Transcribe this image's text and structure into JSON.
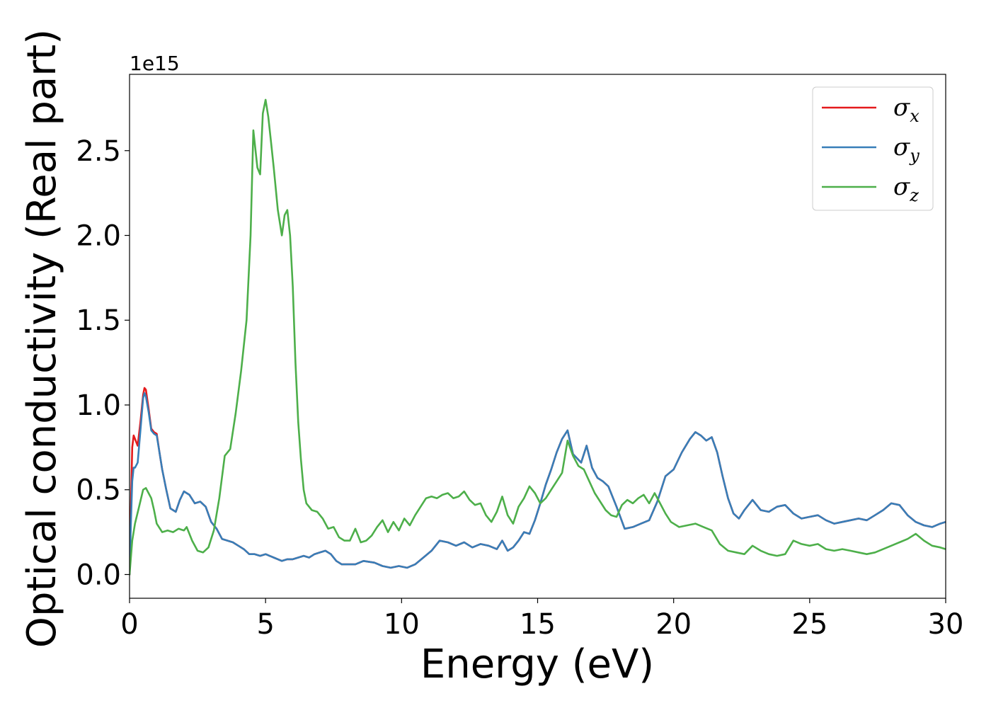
{
  "chart_data": {
    "type": "line",
    "xlabel": "Energy (eV)",
    "ylabel": "Optical conductivity (Real part)",
    "offset_text": "1e15",
    "xlim": [
      0,
      30
    ],
    "ylim": [
      -0.14,
      2.95
    ],
    "xticks": [
      0,
      5,
      10,
      15,
      20,
      25,
      30
    ],
    "xtick_labels": [
      "0",
      "5",
      "10",
      "15",
      "20",
      "25",
      "30"
    ],
    "yticks": [
      0.0,
      0.5,
      1.0,
      1.5,
      2.0,
      2.5
    ],
    "ytick_labels": [
      "0.0",
      "0.5",
      "1.0",
      "1.5",
      "2.0",
      "2.5"
    ],
    "grid": false,
    "legend_position": "upper right",
    "series": [
      {
        "name": "σx",
        "symbol": "σ",
        "subscript": "x",
        "color": "#e41a1c",
        "x": [
          0,
          0.05,
          0.1,
          0.15,
          0.2,
          0.3,
          0.4,
          0.5,
          0.55,
          0.6,
          0.7,
          0.8,
          0.9,
          1.0,
          1.1,
          1.2,
          1.35,
          1.5,
          1.7,
          1.85,
          2.0,
          2.2,
          2.4,
          2.6,
          2.8,
          3.0,
          3.2,
          3.4,
          3.6,
          3.8,
          4.0,
          4.2,
          4.4,
          4.6,
          4.8,
          5.0,
          5.3,
          5.6,
          5.8,
          6.0,
          6.2,
          6.4,
          6.6,
          6.8,
          7.0,
          7.2,
          7.4,
          7.6,
          7.8,
          8.0,
          8.3,
          8.6,
          9.0,
          9.3,
          9.6,
          9.9,
          10.2,
          10.5,
          10.8,
          11.1,
          11.4,
          11.7,
          12.0,
          12.3,
          12.6,
          12.9,
          13.2,
          13.5,
          13.7,
          13.9,
          14.1,
          14.3,
          14.5,
          14.7,
          14.9,
          15.1,
          15.3,
          15.5,
          15.7,
          15.9,
          16.1,
          16.3,
          16.6,
          16.8,
          17.0,
          17.2,
          17.4,
          17.6,
          17.9,
          18.2,
          18.5,
          18.8,
          19.1,
          19.4,
          19.7,
          20.0,
          20.3,
          20.6,
          20.8,
          21.0,
          21.2,
          21.4,
          21.6,
          21.8,
          22.0,
          22.2,
          22.4,
          22.6,
          22.9,
          23.2,
          23.5,
          23.8,
          24.1,
          24.4,
          24.7,
          25.0,
          25.3,
          25.6,
          25.9,
          26.2,
          26.5,
          26.8,
          27.1,
          27.4,
          27.7,
          28.0,
          28.3,
          28.6,
          28.9,
          29.2,
          29.5,
          29.8,
          30.0
        ],
        "y": [
          0.0,
          0.4,
          0.75,
          0.82,
          0.8,
          0.76,
          0.9,
          1.06,
          1.1,
          1.09,
          0.98,
          0.86,
          0.84,
          0.83,
          0.72,
          0.62,
          0.5,
          0.39,
          0.37,
          0.44,
          0.49,
          0.47,
          0.42,
          0.43,
          0.4,
          0.31,
          0.27,
          0.21,
          0.2,
          0.19,
          0.17,
          0.15,
          0.12,
          0.12,
          0.11,
          0.12,
          0.1,
          0.08,
          0.09,
          0.09,
          0.1,
          0.11,
          0.1,
          0.12,
          0.13,
          0.14,
          0.12,
          0.08,
          0.06,
          0.06,
          0.06,
          0.08,
          0.07,
          0.05,
          0.04,
          0.05,
          0.04,
          0.06,
          0.1,
          0.14,
          0.2,
          0.19,
          0.17,
          0.19,
          0.16,
          0.18,
          0.17,
          0.15,
          0.2,
          0.14,
          0.16,
          0.2,
          0.25,
          0.24,
          0.32,
          0.42,
          0.53,
          0.62,
          0.72,
          0.8,
          0.85,
          0.71,
          0.66,
          0.76,
          0.63,
          0.57,
          0.55,
          0.52,
          0.4,
          0.27,
          0.28,
          0.3,
          0.32,
          0.43,
          0.58,
          0.62,
          0.72,
          0.8,
          0.84,
          0.82,
          0.79,
          0.81,
          0.72,
          0.58,
          0.45,
          0.36,
          0.33,
          0.38,
          0.44,
          0.38,
          0.37,
          0.4,
          0.41,
          0.36,
          0.33,
          0.34,
          0.35,
          0.32,
          0.3,
          0.31,
          0.32,
          0.33,
          0.32,
          0.35,
          0.38,
          0.42,
          0.41,
          0.35,
          0.31,
          0.29,
          0.28,
          0.3,
          0.31
        ]
      },
      {
        "name": "σy",
        "symbol": "σ",
        "subscript": "y",
        "color": "#377eb8",
        "x": [
          0,
          0.05,
          0.1,
          0.15,
          0.2,
          0.3,
          0.4,
          0.5,
          0.55,
          0.6,
          0.7,
          0.8,
          0.9,
          1.0,
          1.1,
          1.2,
          1.35,
          1.5,
          1.7,
          1.85,
          2.0,
          2.2,
          2.4,
          2.6,
          2.8,
          3.0,
          3.2,
          3.4,
          3.6,
          3.8,
          4.0,
          4.2,
          4.4,
          4.6,
          4.8,
          5.0,
          5.3,
          5.6,
          5.8,
          6.0,
          6.2,
          6.4,
          6.6,
          6.8,
          7.0,
          7.2,
          7.4,
          7.6,
          7.8,
          8.0,
          8.3,
          8.6,
          9.0,
          9.3,
          9.6,
          9.9,
          10.2,
          10.5,
          10.8,
          11.1,
          11.4,
          11.7,
          12.0,
          12.3,
          12.6,
          12.9,
          13.2,
          13.5,
          13.7,
          13.9,
          14.1,
          14.3,
          14.5,
          14.7,
          14.9,
          15.1,
          15.3,
          15.5,
          15.7,
          15.9,
          16.1,
          16.3,
          16.6,
          16.8,
          17.0,
          17.2,
          17.4,
          17.6,
          17.9,
          18.2,
          18.5,
          18.8,
          19.1,
          19.4,
          19.7,
          20.0,
          20.3,
          20.6,
          20.8,
          21.0,
          21.2,
          21.4,
          21.6,
          21.8,
          22.0,
          22.2,
          22.4,
          22.6,
          22.9,
          23.2,
          23.5,
          23.8,
          24.1,
          24.4,
          24.7,
          25.0,
          25.3,
          25.6,
          25.9,
          26.2,
          26.5,
          26.8,
          27.1,
          27.4,
          27.7,
          28.0,
          28.3,
          28.6,
          28.9,
          29.2,
          29.5,
          29.8,
          30.0
        ],
        "y": [
          0.0,
          0.3,
          0.55,
          0.63,
          0.63,
          0.66,
          0.85,
          1.04,
          1.07,
          1.05,
          0.96,
          0.85,
          0.83,
          0.82,
          0.72,
          0.62,
          0.5,
          0.39,
          0.37,
          0.44,
          0.49,
          0.47,
          0.42,
          0.43,
          0.4,
          0.31,
          0.27,
          0.21,
          0.2,
          0.19,
          0.17,
          0.15,
          0.12,
          0.12,
          0.11,
          0.12,
          0.1,
          0.08,
          0.09,
          0.09,
          0.1,
          0.11,
          0.1,
          0.12,
          0.13,
          0.14,
          0.12,
          0.08,
          0.06,
          0.06,
          0.06,
          0.08,
          0.07,
          0.05,
          0.04,
          0.05,
          0.04,
          0.06,
          0.1,
          0.14,
          0.2,
          0.19,
          0.17,
          0.19,
          0.16,
          0.18,
          0.17,
          0.15,
          0.2,
          0.14,
          0.16,
          0.2,
          0.25,
          0.24,
          0.32,
          0.42,
          0.53,
          0.62,
          0.72,
          0.8,
          0.85,
          0.71,
          0.66,
          0.76,
          0.63,
          0.57,
          0.55,
          0.52,
          0.4,
          0.27,
          0.28,
          0.3,
          0.32,
          0.43,
          0.58,
          0.62,
          0.72,
          0.8,
          0.84,
          0.82,
          0.79,
          0.81,
          0.72,
          0.58,
          0.45,
          0.36,
          0.33,
          0.38,
          0.44,
          0.38,
          0.37,
          0.4,
          0.41,
          0.36,
          0.33,
          0.34,
          0.35,
          0.32,
          0.3,
          0.31,
          0.32,
          0.33,
          0.32,
          0.35,
          0.38,
          0.42,
          0.41,
          0.35,
          0.31,
          0.29,
          0.28,
          0.3,
          0.31
        ]
      },
      {
        "name": "σz",
        "symbol": "σ",
        "subscript": "z",
        "color": "#4daf4a",
        "x": [
          0,
          0.1,
          0.2,
          0.35,
          0.5,
          0.6,
          0.7,
          0.8,
          0.9,
          1.0,
          1.2,
          1.4,
          1.6,
          1.8,
          2.0,
          2.1,
          2.3,
          2.5,
          2.7,
          2.9,
          3.1,
          3.3,
          3.5,
          3.7,
          3.9,
          4.1,
          4.3,
          4.45,
          4.55,
          4.7,
          4.8,
          4.9,
          5.0,
          5.1,
          5.2,
          5.3,
          5.45,
          5.6,
          5.7,
          5.8,
          5.9,
          6.0,
          6.1,
          6.2,
          6.3,
          6.4,
          6.5,
          6.7,
          6.9,
          7.1,
          7.3,
          7.5,
          7.7,
          7.9,
          8.1,
          8.3,
          8.5,
          8.7,
          8.9,
          9.1,
          9.3,
          9.5,
          9.7,
          9.9,
          10.1,
          10.3,
          10.5,
          10.7,
          10.9,
          11.1,
          11.3,
          11.5,
          11.7,
          11.9,
          12.1,
          12.3,
          12.5,
          12.7,
          12.9,
          13.1,
          13.3,
          13.5,
          13.7,
          13.9,
          14.1,
          14.3,
          14.5,
          14.7,
          14.9,
          15.1,
          15.3,
          15.5,
          15.7,
          15.9,
          16.1,
          16.3,
          16.5,
          16.7,
          16.9,
          17.1,
          17.3,
          17.5,
          17.7,
          17.9,
          18.1,
          18.3,
          18.5,
          18.7,
          18.9,
          19.1,
          19.3,
          19.5,
          19.7,
          19.9,
          20.2,
          20.5,
          20.8,
          21.1,
          21.4,
          21.7,
          22.0,
          22.3,
          22.6,
          22.9,
          23.2,
          23.5,
          23.8,
          24.1,
          24.4,
          24.7,
          25.0,
          25.3,
          25.6,
          25.9,
          26.2,
          26.5,
          26.8,
          27.1,
          27.4,
          27.7,
          28.0,
          28.3,
          28.6,
          28.9,
          29.2,
          29.5,
          29.8,
          30.0
        ],
        "y": [
          0.0,
          0.2,
          0.3,
          0.4,
          0.5,
          0.51,
          0.48,
          0.45,
          0.38,
          0.3,
          0.25,
          0.26,
          0.25,
          0.27,
          0.26,
          0.28,
          0.2,
          0.14,
          0.13,
          0.16,
          0.26,
          0.45,
          0.7,
          0.74,
          0.95,
          1.2,
          1.5,
          2.0,
          2.62,
          2.4,
          2.36,
          2.72,
          2.8,
          2.7,
          2.55,
          2.4,
          2.15,
          2.0,
          2.12,
          2.15,
          2.0,
          1.7,
          1.25,
          0.9,
          0.68,
          0.5,
          0.42,
          0.38,
          0.37,
          0.33,
          0.27,
          0.28,
          0.22,
          0.2,
          0.2,
          0.27,
          0.19,
          0.2,
          0.23,
          0.28,
          0.32,
          0.25,
          0.31,
          0.26,
          0.33,
          0.29,
          0.35,
          0.4,
          0.45,
          0.46,
          0.45,
          0.47,
          0.48,
          0.45,
          0.46,
          0.49,
          0.44,
          0.41,
          0.42,
          0.35,
          0.31,
          0.37,
          0.46,
          0.35,
          0.3,
          0.4,
          0.45,
          0.52,
          0.48,
          0.42,
          0.45,
          0.5,
          0.55,
          0.6,
          0.79,
          0.7,
          0.64,
          0.62,
          0.55,
          0.48,
          0.43,
          0.38,
          0.35,
          0.34,
          0.41,
          0.44,
          0.42,
          0.45,
          0.47,
          0.42,
          0.48,
          0.42,
          0.36,
          0.31,
          0.28,
          0.29,
          0.3,
          0.28,
          0.26,
          0.18,
          0.14,
          0.13,
          0.12,
          0.17,
          0.14,
          0.12,
          0.11,
          0.12,
          0.2,
          0.18,
          0.17,
          0.18,
          0.15,
          0.14,
          0.15,
          0.14,
          0.13,
          0.12,
          0.13,
          0.15,
          0.17,
          0.19,
          0.21,
          0.24,
          0.2,
          0.17,
          0.16,
          0.15
        ]
      }
    ]
  }
}
